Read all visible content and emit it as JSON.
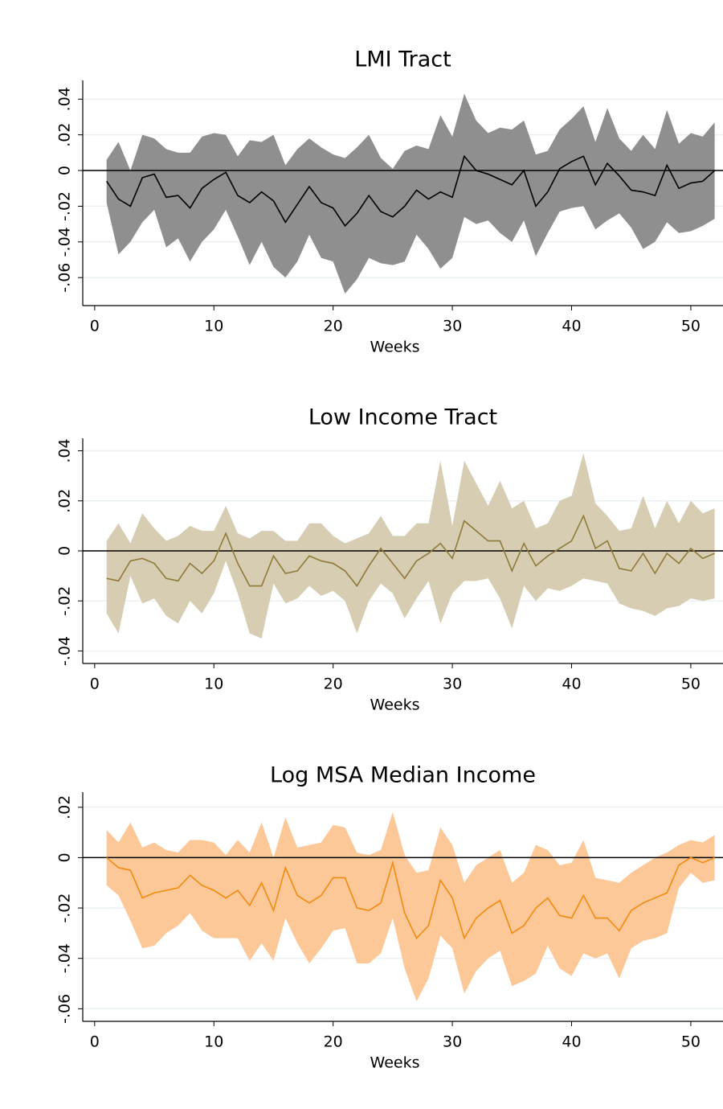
{
  "chart_data": [
    {
      "type": "line",
      "title": "LMI Tract",
      "x_label": "Weeks",
      "grid": true,
      "hline": 0,
      "x": [
        1,
        2,
        3,
        4,
        5,
        6,
        7,
        8,
        9,
        10,
        11,
        12,
        13,
        14,
        15,
        16,
        17,
        18,
        19,
        20,
        21,
        22,
        23,
        24,
        25,
        26,
        27,
        28,
        29,
        30,
        31,
        32,
        33,
        34,
        35,
        36,
        37,
        38,
        39,
        40,
        41,
        42,
        43,
        44,
        45,
        46,
        47,
        48,
        49,
        50,
        51,
        52
      ],
      "xlim": [
        -1,
        52.7
      ],
      "xticks": [
        0,
        10,
        20,
        30,
        40,
        50
      ],
      "ylim": [
        -0.0757,
        0.0505
      ],
      "yticks": [
        {
          "value": -0.06,
          "label": "-.06"
        },
        {
          "value": -0.04,
          "label": "-.04"
        },
        {
          "value": -0.02,
          "label": "-.02"
        },
        0,
        {
          "value": 0.02,
          "label": ".02"
        },
        {
          "value": 0.04,
          "label": ".04"
        }
      ],
      "estimate": {
        "color": "#000000",
        "values": [
          -0.006,
          -0.016,
          -0.02,
          -0.004,
          -0.002,
          -0.015,
          -0.014,
          -0.021,
          -0.01,
          -0.005,
          -0.001,
          -0.014,
          -0.018,
          -0.012,
          -0.017,
          -0.029,
          -0.019,
          -0.009,
          -0.018,
          -0.021,
          -0.031,
          -0.024,
          -0.014,
          -0.023,
          -0.026,
          -0.02,
          -0.011,
          -0.016,
          -0.012,
          -0.015,
          0.008,
          0.0,
          -0.002,
          -0.005,
          -0.008,
          0.0,
          -0.02,
          -0.012,
          0.001,
          0.005,
          0.008,
          -0.008,
          0.004,
          -0.003,
          -0.011,
          -0.012,
          -0.014,
          0.003,
          -0.01,
          -0.007,
          -0.006,
          0.0
        ]
      },
      "ci": {
        "color": "#8f8f8f",
        "upper": [
          0.006,
          0.016,
          0.0,
          0.02,
          0.018,
          0.012,
          0.01,
          0.01,
          0.019,
          0.021,
          0.02,
          0.008,
          0.017,
          0.016,
          0.02,
          0.003,
          0.012,
          0.018,
          0.013,
          0.009,
          0.007,
          0.013,
          0.02,
          0.007,
          0.001,
          0.011,
          0.014,
          0.012,
          0.031,
          0.019,
          0.043,
          0.028,
          0.021,
          0.024,
          0.023,
          0.028,
          0.009,
          0.011,
          0.023,
          0.029,
          0.036,
          0.016,
          0.035,
          0.018,
          0.011,
          0.02,
          0.012,
          0.034,
          0.015,
          0.021,
          0.019,
          0.027
        ],
        "lower": [
          -0.018,
          -0.047,
          -0.04,
          -0.029,
          -0.022,
          -0.043,
          -0.038,
          -0.051,
          -0.04,
          -0.033,
          -0.022,
          -0.037,
          -0.053,
          -0.04,
          -0.054,
          -0.06,
          -0.051,
          -0.036,
          -0.049,
          -0.051,
          -0.069,
          -0.061,
          -0.049,
          -0.052,
          -0.053,
          -0.051,
          -0.036,
          -0.044,
          -0.055,
          -0.049,
          -0.026,
          -0.03,
          -0.028,
          -0.035,
          -0.04,
          -0.028,
          -0.048,
          -0.035,
          -0.023,
          -0.021,
          -0.02,
          -0.033,
          -0.028,
          -0.024,
          -0.032,
          -0.044,
          -0.04,
          -0.029,
          -0.035,
          -0.034,
          -0.031,
          -0.027
        ]
      }
    },
    {
      "type": "line",
      "title": "Low Income Tract",
      "x_label": "Weeks",
      "grid": true,
      "hline": 0,
      "x": [
        1,
        2,
        3,
        4,
        5,
        6,
        7,
        8,
        9,
        10,
        11,
        12,
        13,
        14,
        15,
        16,
        17,
        18,
        19,
        20,
        21,
        22,
        23,
        24,
        25,
        26,
        27,
        28,
        29,
        30,
        31,
        32,
        33,
        34,
        35,
        36,
        37,
        38,
        39,
        40,
        41,
        42,
        43,
        44,
        45,
        46,
        47,
        48,
        49,
        50,
        51,
        52
      ],
      "xlim": [
        -1,
        52.7
      ],
      "xticks": [
        0,
        10,
        20,
        30,
        40,
        50
      ],
      "ylim": [
        -0.045,
        0.045
      ],
      "yticks": [
        {
          "value": -0.04,
          "label": "-.04"
        },
        {
          "value": -0.02,
          "label": "-.02"
        },
        0,
        {
          "value": 0.02,
          "label": ".02"
        },
        {
          "value": 0.04,
          "label": ".04"
        }
      ],
      "estimate": {
        "color": "#8f7a3a",
        "values": [
          -0.011,
          -0.012,
          -0.004,
          -0.003,
          -0.005,
          -0.011,
          -0.012,
          -0.005,
          -0.009,
          -0.004,
          0.007,
          -0.005,
          -0.014,
          -0.014,
          -0.002,
          -0.009,
          -0.008,
          -0.002,
          -0.004,
          -0.005,
          -0.008,
          -0.014,
          -0.006,
          0.001,
          -0.005,
          -0.011,
          -0.004,
          -0.001,
          0.003,
          -0.003,
          0.012,
          0.008,
          0.004,
          0.004,
          -0.008,
          0.003,
          -0.006,
          -0.002,
          0.001,
          0.004,
          0.014,
          0.001,
          0.004,
          -0.007,
          -0.008,
          -0.001,
          -0.009,
          -0.001,
          -0.005,
          0.001,
          -0.003,
          -0.001
        ]
      },
      "ci": {
        "color": "#d6cdb2",
        "upper": [
          0.004,
          0.011,
          0.003,
          0.015,
          0.009,
          0.004,
          0.006,
          0.01,
          0.008,
          0.008,
          0.018,
          0.007,
          0.005,
          0.008,
          0.008,
          0.004,
          0.004,
          0.011,
          0.011,
          0.006,
          0.003,
          0.005,
          0.007,
          0.014,
          0.006,
          0.006,
          0.011,
          0.011,
          0.036,
          0.01,
          0.036,
          0.027,
          0.018,
          0.028,
          0.017,
          0.02,
          0.009,
          0.011,
          0.02,
          0.022,
          0.039,
          0.019,
          0.014,
          0.008,
          0.009,
          0.022,
          0.009,
          0.02,
          0.011,
          0.02,
          0.015,
          0.017
        ],
        "lower": [
          -0.025,
          -0.033,
          -0.01,
          -0.021,
          -0.019,
          -0.026,
          -0.029,
          -0.02,
          -0.025,
          -0.017,
          -0.004,
          -0.017,
          -0.033,
          -0.035,
          -0.013,
          -0.021,
          -0.019,
          -0.014,
          -0.018,
          -0.016,
          -0.02,
          -0.033,
          -0.02,
          -0.013,
          -0.017,
          -0.027,
          -0.019,
          -0.012,
          -0.029,
          -0.017,
          -0.012,
          -0.012,
          -0.011,
          -0.019,
          -0.031,
          -0.014,
          -0.02,
          -0.015,
          -0.016,
          -0.014,
          -0.011,
          -0.012,
          -0.013,
          -0.021,
          -0.023,
          -0.024,
          -0.026,
          -0.023,
          -0.022,
          -0.019,
          -0.02,
          -0.019
        ]
      }
    },
    {
      "type": "line",
      "title": "Log MSA Median Income",
      "x_label": "Weeks",
      "grid": true,
      "hline": 0,
      "x": [
        1,
        2,
        3,
        4,
        5,
        6,
        7,
        8,
        9,
        10,
        11,
        12,
        13,
        14,
        15,
        16,
        17,
        18,
        19,
        20,
        21,
        22,
        23,
        24,
        25,
        26,
        27,
        28,
        29,
        30,
        31,
        32,
        33,
        34,
        35,
        36,
        37,
        38,
        39,
        40,
        41,
        42,
        43,
        44,
        45,
        46,
        47,
        48,
        49,
        50,
        51,
        52
      ],
      "xlim": [
        -1,
        52.7
      ],
      "xticks": [
        0,
        10,
        20,
        30,
        40,
        50
      ],
      "ylim": [
        -0.065,
        0.026
      ],
      "yticks": [
        {
          "value": -0.06,
          "label": "-.06"
        },
        {
          "value": -0.04,
          "label": "-.04"
        },
        {
          "value": -0.02,
          "label": "-.02"
        },
        0,
        {
          "value": 0.02,
          "label": ".02"
        }
      ],
      "estimate": {
        "color": "#f08a10",
        "values": [
          0.0,
          -0.004,
          -0.005,
          -0.016,
          -0.014,
          -0.013,
          -0.012,
          -0.007,
          -0.011,
          -0.013,
          -0.016,
          -0.013,
          -0.019,
          -0.01,
          -0.021,
          -0.004,
          -0.015,
          -0.018,
          -0.015,
          -0.008,
          -0.008,
          -0.02,
          -0.021,
          -0.018,
          -0.002,
          -0.022,
          -0.032,
          -0.027,
          -0.009,
          -0.016,
          -0.032,
          -0.024,
          -0.02,
          -0.017,
          -0.03,
          -0.027,
          -0.02,
          -0.016,
          -0.023,
          -0.024,
          -0.015,
          -0.024,
          -0.024,
          -0.029,
          -0.021,
          -0.018,
          -0.016,
          -0.014,
          -0.003,
          0.0,
          -0.002,
          0.0
        ]
      },
      "ci": {
        "color": "#fdc897",
        "upper": [
          0.011,
          0.006,
          0.014,
          0.004,
          0.006,
          0.003,
          0.002,
          0.007,
          0.007,
          0.006,
          0.001,
          0.007,
          0.002,
          0.014,
          0.0,
          0.016,
          0.004,
          0.005,
          0.006,
          0.013,
          0.012,
          0.002,
          0.001,
          0.003,
          0.018,
          0.001,
          -0.006,
          -0.005,
          0.012,
          0.005,
          -0.01,
          -0.003,
          0.0,
          0.003,
          -0.01,
          -0.006,
          0.005,
          0.003,
          -0.003,
          -0.002,
          0.007,
          -0.008,
          -0.009,
          -0.01,
          -0.006,
          -0.003,
          0.0,
          0.002,
          0.005,
          0.007,
          0.006,
          0.009
        ],
        "lower": [
          -0.011,
          -0.015,
          -0.025,
          -0.036,
          -0.035,
          -0.03,
          -0.027,
          -0.022,
          -0.029,
          -0.032,
          -0.032,
          -0.032,
          -0.041,
          -0.034,
          -0.041,
          -0.024,
          -0.034,
          -0.042,
          -0.036,
          -0.029,
          -0.028,
          -0.042,
          -0.042,
          -0.038,
          -0.024,
          -0.044,
          -0.057,
          -0.048,
          -0.031,
          -0.036,
          -0.054,
          -0.045,
          -0.04,
          -0.037,
          -0.051,
          -0.049,
          -0.046,
          -0.035,
          -0.044,
          -0.047,
          -0.038,
          -0.04,
          -0.038,
          -0.048,
          -0.036,
          -0.033,
          -0.032,
          -0.03,
          -0.012,
          -0.006,
          -0.01,
          -0.009
        ]
      }
    }
  ]
}
